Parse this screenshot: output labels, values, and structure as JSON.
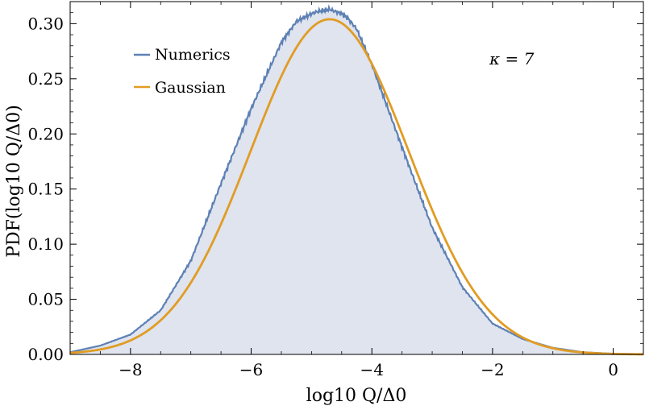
{
  "chart_data": {
    "type": "area",
    "xlabel": "log10 Q/Δ0",
    "ylabel": "PDF(log10 Q/Δ0)",
    "xlim": [
      -9.0,
      0.5
    ],
    "ylim": [
      0.0,
      0.32
    ],
    "x_ticks": [
      -8,
      -6,
      -4,
      -2,
      0
    ],
    "x_tick_labels": [
      "−8",
      "−6",
      "−4",
      "−2",
      "0"
    ],
    "y_ticks": [
      0.0,
      0.05,
      0.1,
      0.15,
      0.2,
      0.25,
      0.3
    ],
    "y_tick_labels": [
      "0.00",
      "0.05",
      "0.10",
      "0.15",
      "0.20",
      "0.25",
      "0.30"
    ],
    "annotation": "κ = 7",
    "legend_placement": "top-left",
    "grid": false,
    "colors": {
      "numerics": "#5e81b5",
      "numerics_fill": "#dfe4ee",
      "gaussian": "#e19c24",
      "frame": "#000000"
    },
    "series": [
      {
        "name": "Numerics",
        "x": [
          -9.0,
          -8.5,
          -8.0,
          -7.5,
          -7.0,
          -6.5,
          -6.0,
          -5.5,
          -5.25,
          -5.0,
          -4.9,
          -4.8,
          -4.7,
          -4.6,
          -4.5,
          -4.4,
          -4.25,
          -4.0,
          -3.5,
          -3.0,
          -2.5,
          -2.0,
          -1.5,
          -1.0,
          -0.5,
          0.0,
          0.5
        ],
        "y": [
          0.002,
          0.008,
          0.018,
          0.04,
          0.085,
          0.155,
          0.223,
          0.283,
          0.302,
          0.309,
          0.311,
          0.312,
          0.313,
          0.311,
          0.309,
          0.305,
          0.295,
          0.263,
          0.188,
          0.115,
          0.061,
          0.028,
          0.014,
          0.006,
          0.002,
          0.0006,
          0.0002
        ]
      },
      {
        "name": "Gaussian",
        "mean": -4.7,
        "std": 1.31,
        "peak": 0.304
      }
    ]
  }
}
